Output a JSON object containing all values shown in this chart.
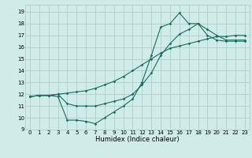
{
  "title": "",
  "xlabel": "Humidex (Indice chaleur)",
  "bg_color": "#d0ece8",
  "grid_color": "#b0ccc8",
  "line_color": "#1a6b60",
  "xlim": [
    -0.5,
    23.5
  ],
  "ylim": [
    9,
    19.6
  ],
  "yticks": [
    9,
    10,
    11,
    12,
    13,
    14,
    15,
    16,
    17,
    18,
    19
  ],
  "xticks": [
    0,
    1,
    2,
    3,
    4,
    5,
    6,
    7,
    8,
    9,
    10,
    11,
    12,
    13,
    14,
    15,
    16,
    17,
    18,
    19,
    20,
    21,
    22,
    23
  ],
  "line1_x": [
    0,
    1,
    2,
    3,
    4,
    5,
    6,
    7,
    8,
    9,
    10,
    11,
    12,
    13,
    14,
    15,
    16,
    17,
    18,
    19,
    20,
    21,
    22,
    23
  ],
  "line1_y": [
    11.8,
    11.9,
    11.9,
    11.8,
    9.8,
    9.8,
    9.7,
    9.5,
    10.0,
    10.5,
    11.0,
    11.6,
    13.0,
    15.3,
    17.7,
    18.0,
    18.9,
    18.0,
    18.0,
    17.5,
    17.0,
    16.6,
    16.6,
    16.6
  ],
  "line2_x": [
    0,
    1,
    2,
    3,
    4,
    5,
    6,
    7,
    8,
    9,
    10,
    11,
    12,
    13,
    14,
    15,
    16,
    17,
    18,
    19,
    20,
    21,
    22,
    23
  ],
  "line2_y": [
    11.8,
    11.9,
    11.9,
    12.0,
    12.1,
    12.2,
    12.3,
    12.5,
    12.8,
    13.1,
    13.5,
    14.0,
    14.5,
    15.0,
    15.5,
    15.9,
    16.1,
    16.3,
    16.5,
    16.7,
    16.9,
    16.9,
    17.0,
    17.0
  ],
  "line3_x": [
    0,
    1,
    2,
    3,
    4,
    5,
    6,
    7,
    8,
    9,
    10,
    11,
    12,
    13,
    14,
    15,
    16,
    17,
    18,
    19,
    20,
    21,
    22,
    23
  ],
  "line3_y": [
    11.8,
    11.9,
    11.9,
    12.0,
    11.2,
    11.0,
    11.0,
    11.0,
    11.2,
    11.4,
    11.6,
    12.0,
    12.8,
    13.8,
    15.3,
    16.3,
    17.1,
    17.5,
    18.0,
    17.0,
    16.6,
    16.5,
    16.5,
    16.5
  ],
  "tick_fontsize": 5.0,
  "xlabel_fontsize": 6.0,
  "marker_size": 1.8,
  "line_width": 0.8
}
